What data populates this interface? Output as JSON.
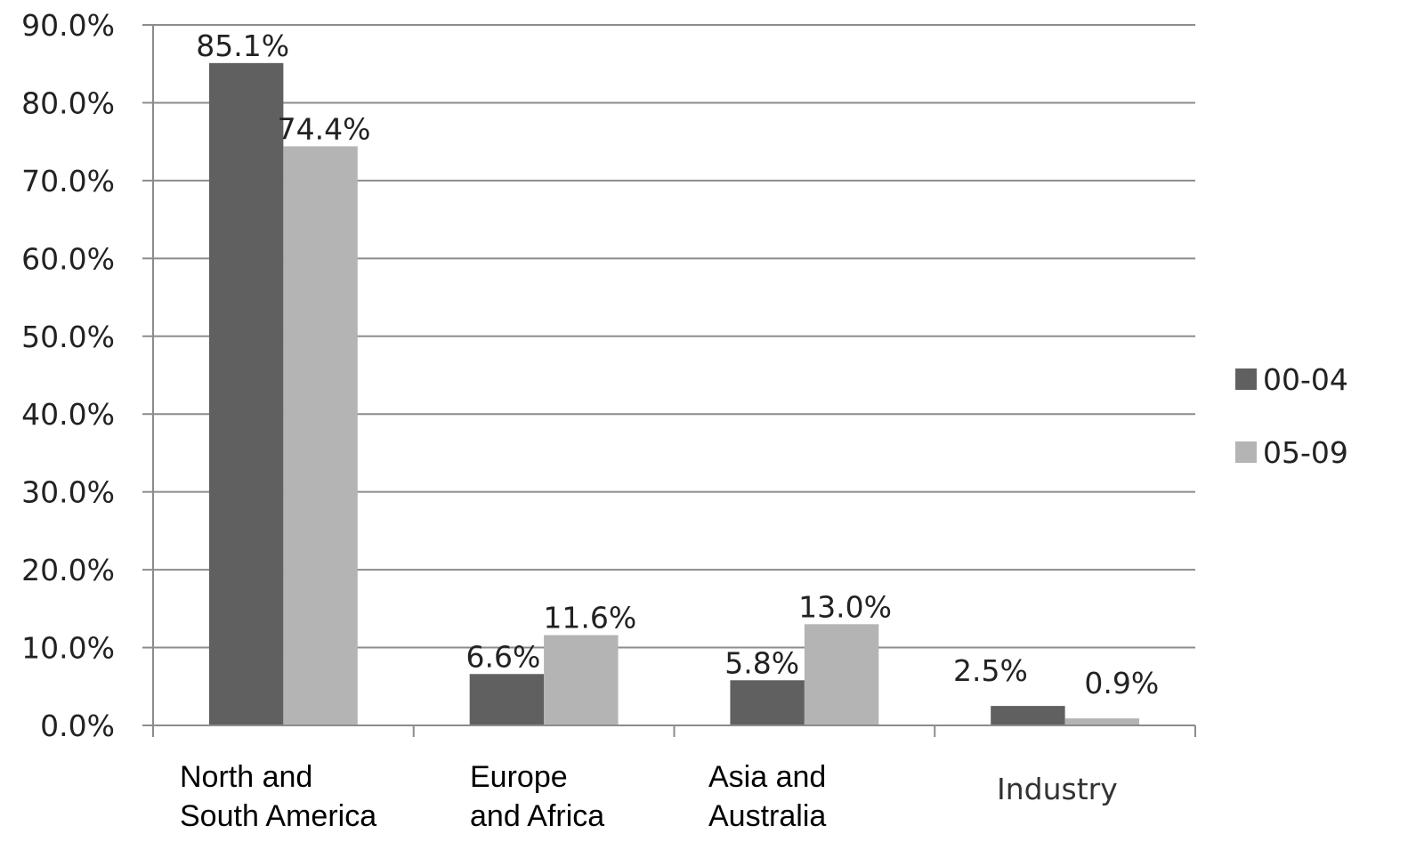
{
  "chart_data": {
    "type": "bar",
    "categories": [
      [
        "North and",
        "South America"
      ],
      [
        "Europe",
        "and Africa"
      ],
      [
        "Asia and",
        "Australia"
      ],
      [
        "Industry"
      ]
    ],
    "series": [
      {
        "name": "00-04",
        "values": [
          85.1,
          6.6,
          5.8,
          2.5
        ],
        "labels": [
          "85.1%",
          "6.6%",
          "5.8%",
          "2.5%"
        ],
        "color": "#606060"
      },
      {
        "name": "05-09",
        "values": [
          74.4,
          11.6,
          13.0,
          0.9
        ],
        "labels": [
          "74.4%",
          "11.6%",
          "13.0%",
          "0.9%"
        ],
        "color": "#b4b4b4"
      }
    ],
    "ylim": [
      0,
      90
    ],
    "yticks": [
      "0.0%",
      "10.0%",
      "20.0%",
      "30.0%",
      "40.0%",
      "50.0%",
      "60.0%",
      "70.0%",
      "80.0%",
      "90.0%"
    ],
    "grid": true,
    "legend_position": "right",
    "title": "",
    "xlabel": "",
    "ylabel": ""
  }
}
